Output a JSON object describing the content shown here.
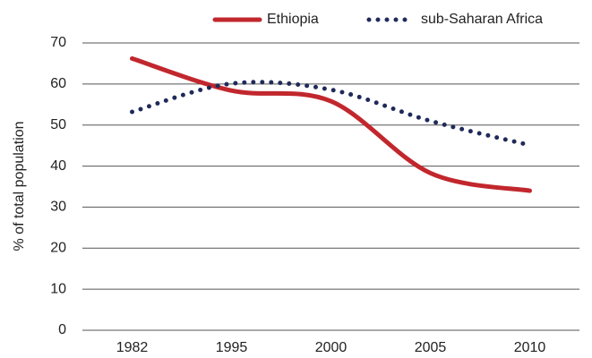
{
  "chart_data": {
    "type": "line",
    "y_label": "% of total population",
    "categories": [
      "1982",
      "1995",
      "2000",
      "2005",
      "2010"
    ],
    "series": [
      {
        "name": "Ethiopia",
        "color": "#c1272d",
        "style": "solid",
        "values": [
          66.2,
          58.4,
          55.8,
          38.3,
          34
        ]
      },
      {
        "name": "sub-Saharan Africa",
        "color": "#1f2a5a",
        "style": "dotted",
        "values": [
          53.2,
          60.1,
          58.6,
          51,
          45.1
        ]
      }
    ],
    "ylim": [
      0,
      70
    ],
    "yticks": [
      0,
      10,
      20,
      30,
      40,
      50,
      60,
      70
    ],
    "grid": true,
    "legend": "top"
  }
}
